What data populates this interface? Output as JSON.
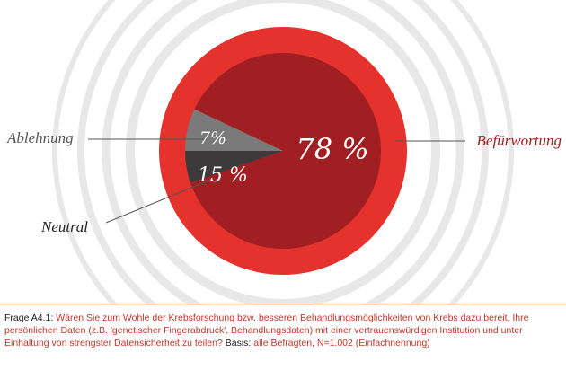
{
  "chart_data": {
    "type": "pie",
    "slices": [
      {
        "label": "Befürwortung",
        "value": 78,
        "display": "78 %",
        "color": "#a11e22"
      },
      {
        "label": "Ablehnung",
        "value": 7,
        "display": "7%",
        "color": "#7a7a7a"
      },
      {
        "label": "Neutral",
        "value": 15,
        "display": "15 %",
        "color": "#3d3a3c"
      }
    ],
    "outer_ring_color": "#e5322d",
    "halo_color": "#e8e8e8"
  },
  "caption": {
    "prefix": "Frage A4.1:",
    "question": " Wären Sie zum Wohle der Krebsforschung bzw. besseren Behandlungsmöglichkeiten von Krebs dazu bereit, Ihre persönlichen Daten (z.B. 'genetischer Fingerabdruck', Behandlungsdaten) mit einer vertrauenswürdigen Institution und unter Einhaltung von strengster Datensicherheit zu teilen?",
    "basis_label": "Basis:",
    "basis_text": " alle Befragten, N=1.002 (Einfachnennung)"
  }
}
